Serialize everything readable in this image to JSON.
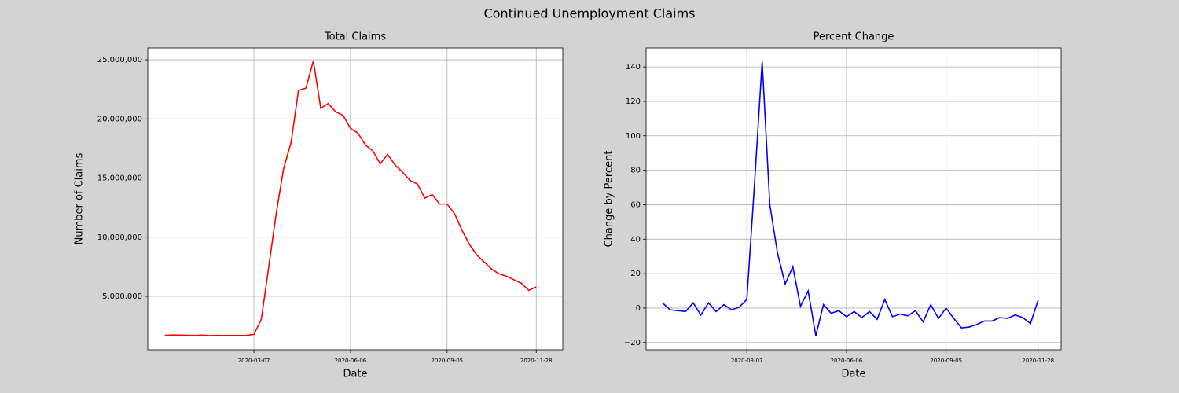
{
  "title": "Continued Unemployment Claims",
  "chart_data": [
    {
      "type": "line",
      "title": "Total Claims",
      "x_label": "Date",
      "y_label": "Number of Claims",
      "x": [
        "2019-12-14",
        "2019-12-21",
        "2019-12-28",
        "2020-01-04",
        "2020-01-11",
        "2020-01-18",
        "2020-01-25",
        "2020-02-01",
        "2020-02-08",
        "2020-02-15",
        "2020-02-22",
        "2020-02-29",
        "2020-03-07",
        "2020-03-14",
        "2020-03-21",
        "2020-03-28",
        "2020-04-04",
        "2020-04-11",
        "2020-04-18",
        "2020-04-25",
        "2020-05-02",
        "2020-05-09",
        "2020-05-16",
        "2020-05-23",
        "2020-05-30",
        "2020-06-06",
        "2020-06-13",
        "2020-06-20",
        "2020-06-27",
        "2020-07-04",
        "2020-07-11",
        "2020-07-18",
        "2020-07-25",
        "2020-08-01",
        "2020-08-08",
        "2020-08-15",
        "2020-08-22",
        "2020-08-29",
        "2020-09-05",
        "2020-09-12",
        "2020-09-19",
        "2020-09-26",
        "2020-10-03",
        "2020-10-10",
        "2020-10-17",
        "2020-10-24",
        "2020-10-31",
        "2020-11-07",
        "2020-11-14",
        "2020-11-21",
        "2020-11-28"
      ],
      "series": [
        {
          "name": "Total Claims",
          "color": "#ff0000",
          "values": [
            1700000,
            1730000,
            1720000,
            1710000,
            1690000,
            1720000,
            1680000,
            1700000,
            1690000,
            1700000,
            1690000,
            1700000,
            1780000,
            3060000,
            7500000,
            12000000,
            15800000,
            18000000,
            22400000,
            22600000,
            24900000,
            20900000,
            21300000,
            20600000,
            20300000,
            19200000,
            18800000,
            17800000,
            17300000,
            16200000,
            17000000,
            16100000,
            15500000,
            14800000,
            14500000,
            13300000,
            13600000,
            12800000,
            12800000,
            12000000,
            10600000,
            9400000,
            8500000,
            7900000,
            7300000,
            6900000,
            6700000,
            6400000,
            6100000,
            5500000,
            5800000
          ]
        }
      ],
      "xlim": [
        "2019-11-28",
        "2020-12-23"
      ],
      "xticks": [
        "2020-03-07",
        "2020-06-06",
        "2020-09-05",
        "2020-11-28"
      ],
      "ylim": [
        480000,
        26000000
      ],
      "yticks": [
        {
          "value": 5000000,
          "label": "5,000,000"
        },
        {
          "value": 10000000,
          "label": "10,000,000"
        },
        {
          "value": 15000000,
          "label": "15,000,000"
        },
        {
          "value": 20000000,
          "label": "20,000,000"
        },
        {
          "value": 25000000,
          "label": "25,000,000"
        }
      ],
      "grid": true
    },
    {
      "type": "line",
      "title": "Percent Change",
      "x_label": "Date",
      "y_label": "Change by Percent",
      "x": [
        "2019-12-21",
        "2019-12-28",
        "2020-01-04",
        "2020-01-11",
        "2020-01-18",
        "2020-01-25",
        "2020-02-01",
        "2020-02-08",
        "2020-02-15",
        "2020-02-22",
        "2020-02-29",
        "2020-03-07",
        "2020-03-14",
        "2020-03-21",
        "2020-03-28",
        "2020-04-04",
        "2020-04-11",
        "2020-04-18",
        "2020-04-25",
        "2020-05-02",
        "2020-05-09",
        "2020-05-16",
        "2020-05-23",
        "2020-05-30",
        "2020-06-06",
        "2020-06-13",
        "2020-06-20",
        "2020-06-27",
        "2020-07-04",
        "2020-07-11",
        "2020-07-18",
        "2020-07-25",
        "2020-08-01",
        "2020-08-08",
        "2020-08-15",
        "2020-08-22",
        "2020-08-29",
        "2020-09-05",
        "2020-09-12",
        "2020-09-19",
        "2020-09-26",
        "2020-10-03",
        "2020-10-10",
        "2020-10-17",
        "2020-10-24",
        "2020-10-31",
        "2020-11-07",
        "2020-11-14",
        "2020-11-21",
        "2020-11-28"
      ],
      "series": [
        {
          "name": "Percent Change",
          "color": "#0000ff",
          "values": [
            3,
            -1,
            -1.5,
            -2,
            3,
            -4,
            3,
            -2,
            2,
            -1,
            0.5,
            5,
            72,
            143,
            60,
            32,
            14,
            24,
            1,
            10,
            -16,
            2,
            -3,
            -1.5,
            -5,
            -2,
            -5.5,
            -2,
            -6.5,
            5,
            -5,
            -3.5,
            -4.5,
            -1.5,
            -8,
            2,
            -6,
            0,
            -6,
            -11.5,
            -11,
            -9.5,
            -7.5,
            -7.5,
            -5.5,
            -6,
            -4,
            -5.5,
            -9,
            4.5
          ]
        }
      ],
      "xlim": [
        "2019-12-06",
        "2020-12-19"
      ],
      "xticks": [
        "2020-03-07",
        "2020-06-06",
        "2020-09-05",
        "2020-11-28"
      ],
      "ylim": [
        -24.2,
        151
      ],
      "yticks": [
        {
          "value": -20,
          "label": "−20"
        },
        0,
        20,
        40,
        60,
        80,
        100,
        120,
        140
      ],
      "grid": true
    }
  ]
}
